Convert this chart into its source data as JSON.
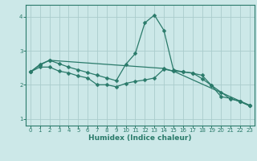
{
  "background_color": "#cce8e8",
  "grid_color": "#aacccc",
  "line_color": "#2a7a6a",
  "xlabel": "Humidex (Indice chaleur)",
  "xlim": [
    -0.5,
    23.5
  ],
  "ylim": [
    0.8,
    4.35
  ],
  "yticks": [
    1,
    2,
    3,
    4
  ],
  "xticks": [
    0,
    1,
    2,
    3,
    4,
    5,
    6,
    7,
    8,
    9,
    10,
    11,
    12,
    13,
    14,
    15,
    16,
    17,
    18,
    19,
    20,
    21,
    22,
    23
  ],
  "line1_x": [
    0,
    1,
    2,
    3,
    4,
    5,
    6,
    7,
    8,
    9,
    10,
    11,
    12,
    13,
    14,
    15,
    16,
    17,
    18,
    19,
    20,
    21,
    22,
    23
  ],
  "line1_y": [
    2.38,
    2.58,
    2.72,
    2.62,
    2.52,
    2.44,
    2.36,
    2.28,
    2.2,
    2.12,
    2.6,
    2.92,
    3.82,
    4.05,
    3.6,
    2.44,
    2.38,
    2.34,
    2.28,
    1.98,
    1.65,
    1.6,
    1.5,
    1.38
  ],
  "line2_x": [
    0,
    1,
    2,
    3,
    4,
    5,
    6,
    7,
    8,
    9,
    10,
    11,
    12,
    13,
    14,
    15,
    16,
    17,
    18,
    19,
    20,
    21,
    22,
    23
  ],
  "line2_y": [
    2.38,
    2.52,
    2.52,
    2.4,
    2.35,
    2.26,
    2.2,
    2.0,
    2.0,
    1.94,
    2.04,
    2.1,
    2.14,
    2.2,
    2.46,
    2.4,
    2.38,
    2.35,
    2.18,
    1.98,
    1.78,
    1.58,
    1.52,
    1.4
  ],
  "line3_x": [
    0,
    1,
    2,
    14,
    15,
    22,
    23
  ],
  "line3_y": [
    2.38,
    2.6,
    2.72,
    2.48,
    2.4,
    1.52,
    1.38
  ],
  "marker": "D",
  "markersize": 2.5,
  "linewidth": 0.9
}
